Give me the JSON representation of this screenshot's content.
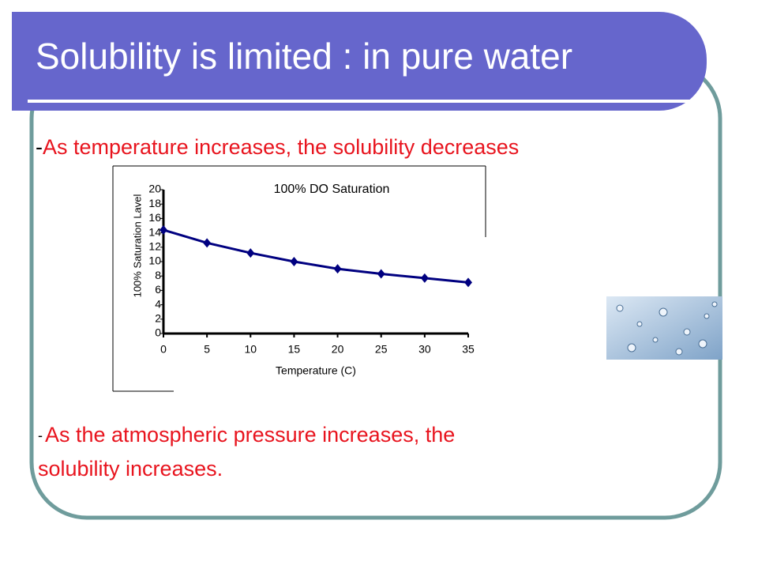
{
  "title": "Solubility is limited : in pure water",
  "bullets": [
    {
      "marker": "-",
      "text": "As temperature increases, the solubility decreases"
    },
    {
      "marker": "-",
      "text": "As the atmospheric pressure increases, the",
      "text2": "solubility increases."
    }
  ],
  "chart_data": {
    "type": "line",
    "title": "100% DO Saturation",
    "x_label": "Temperature (C)",
    "y_label": "100% Saturation Lavel",
    "x": [
      0,
      5,
      10,
      15,
      20,
      25,
      30,
      35
    ],
    "values": [
      14.4,
      12.6,
      11.2,
      10.0,
      9.0,
      8.3,
      7.7,
      7.1
    ],
    "color": "#000080",
    "xlim": [
      0,
      35
    ],
    "xticks": [
      0,
      5,
      10,
      15,
      20,
      25,
      30,
      35
    ],
    "ylim": [
      0,
      20
    ],
    "yticks": [
      0,
      2,
      4,
      6,
      8,
      10,
      12,
      14,
      16,
      18,
      20
    ]
  }
}
